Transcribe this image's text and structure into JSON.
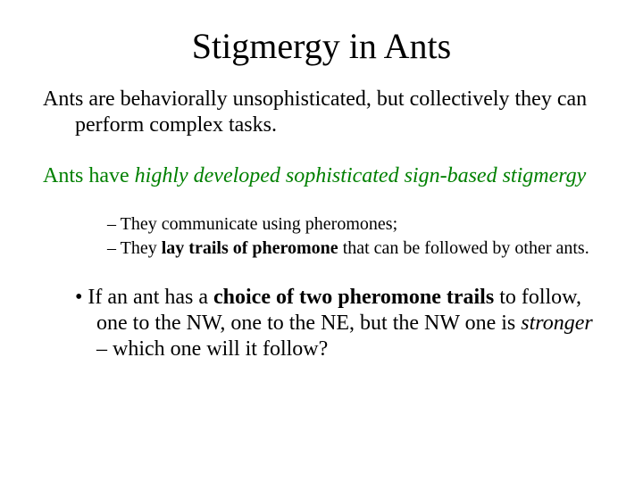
{
  "title": "Stigmergy in Ants",
  "para1": "Ants are behaviorally unsophisticated, but collectively they can perform complex tasks.",
  "para2_plain": "Ants have ",
  "para2_italic": "highly developed sophisticated sign-based stigmergy",
  "sub1_dash": "– ",
  "sub1": "They communicate using pheromones;",
  "sub2_pre": "They ",
  "sub2_bold": "lay trails of pheromone",
  "sub2_post": " that can be followed by other ants.",
  "bullet_marker": "• ",
  "bullet_pre": "If an ant has a ",
  "bullet_bold": "choice of two pheromone trails",
  "bullet_mid": " to follow, one to the NW, one to the NE, but the NW one is ",
  "bullet_italic": "stronger",
  "bullet_post": " – which one will it follow?",
  "colors": {
    "text": "#000000",
    "accent": "#008000",
    "background": "#ffffff"
  },
  "fonts": {
    "family": "Times New Roman",
    "title_size_pt": 40,
    "body_size_pt": 24,
    "sub_size_pt": 20
  }
}
